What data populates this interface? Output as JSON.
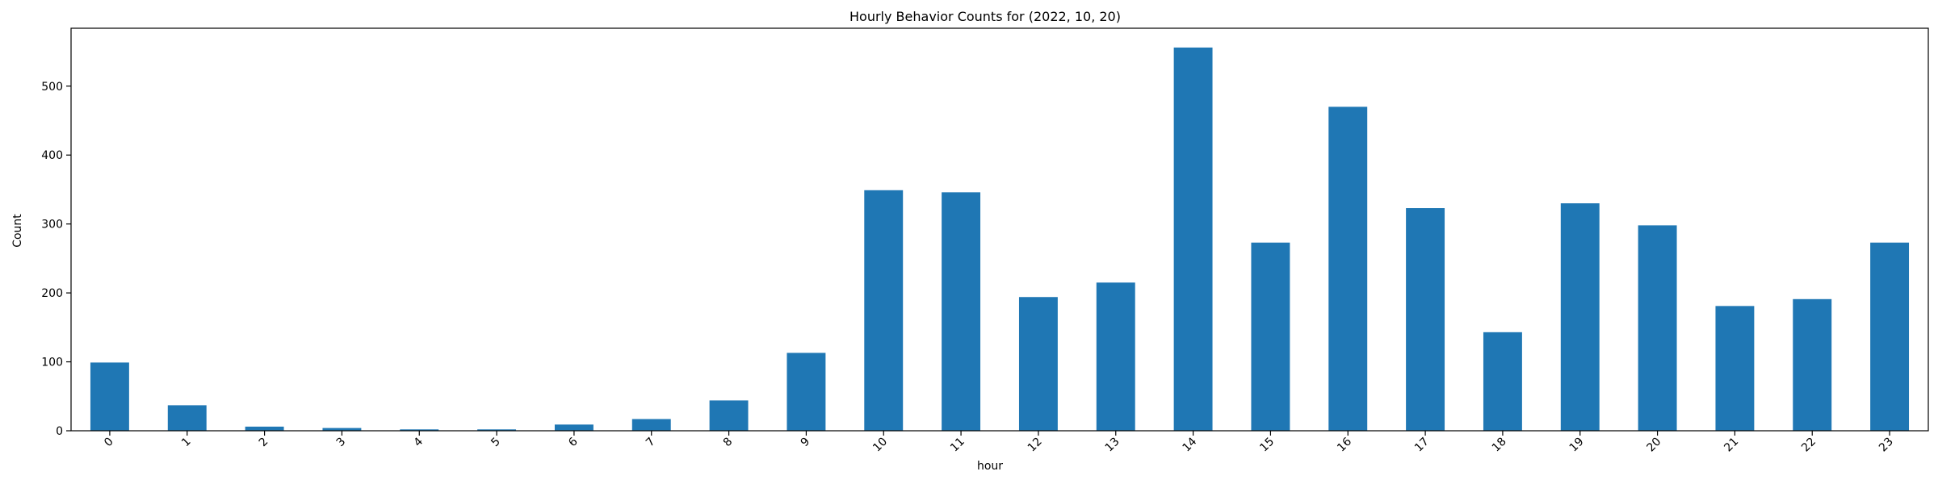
{
  "chart_data": {
    "type": "bar",
    "title": "Hourly Behavior Counts for (2022, 10, 20)",
    "xlabel": "hour",
    "ylabel": "Count",
    "categories": [
      "0",
      "1",
      "2",
      "3",
      "4",
      "5",
      "6",
      "7",
      "8",
      "9",
      "10",
      "11",
      "12",
      "13",
      "14",
      "15",
      "16",
      "17",
      "18",
      "19",
      "20",
      "21",
      "22",
      "23"
    ],
    "values": [
      99,
      37,
      6,
      4,
      2,
      2,
      9,
      17,
      44,
      113,
      349,
      346,
      194,
      215,
      556,
      273,
      470,
      323,
      143,
      330,
      298,
      181,
      191,
      273
    ],
    "ylim": [
      0,
      584
    ],
    "yticks": [
      0,
      100,
      200,
      300,
      400,
      500
    ],
    "xtick_rotation": 45,
    "grid": false,
    "legend": "none",
    "bar_color": "#1f77b4"
  }
}
